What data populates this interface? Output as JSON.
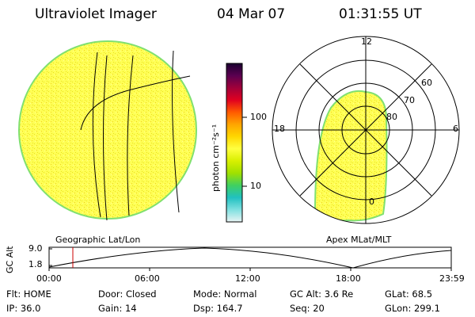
{
  "header": {
    "title": "Ultraviolet Imager",
    "date": "04 Mar 07",
    "time": "01:31:55 UT"
  },
  "colorbar": {
    "unit_label": "photon cm⁻²s⁻¹",
    "ticks": [
      "100",
      "10"
    ],
    "stops": [
      "#1a0030",
      "#5a0050",
      "#a0003a",
      "#e00020",
      "#ff5a00",
      "#ffa500",
      "#ffd700",
      "#ffff40",
      "#d8f000",
      "#a0e000",
      "#40d060",
      "#20c0c0",
      "#80e0e0",
      "#e8f4f4"
    ]
  },
  "left_panel": {
    "label": "Geographic Lat/Lon",
    "fill_color": "#ffff55",
    "rim_color": "#80e070"
  },
  "right_panel": {
    "label": "Apex MLat/MLT",
    "mlt_labels": {
      "top": "12",
      "left": "18",
      "right": "6",
      "bottom": "0"
    },
    "lat_labels": [
      "60",
      "70",
      "80"
    ]
  },
  "altitude_plot": {
    "ylabel": "GC Alt",
    "yticks": [
      "9.0",
      "1.8"
    ],
    "xticks": [
      "00:00",
      "06:00",
      "12:00",
      "18:00",
      "23:59"
    ],
    "marker_color": "#cc0000"
  },
  "info": {
    "row1": [
      "Flt: HOME",
      "Door: Closed",
      "Mode: Normal",
      "GC Alt: 3.6 Re",
      "GLat:  68.5"
    ],
    "row2": [
      "IP: 36.0",
      "Gain: 14",
      "Dsp:  164.7",
      "Seq: 20",
      "GLon: 299.1"
    ]
  }
}
